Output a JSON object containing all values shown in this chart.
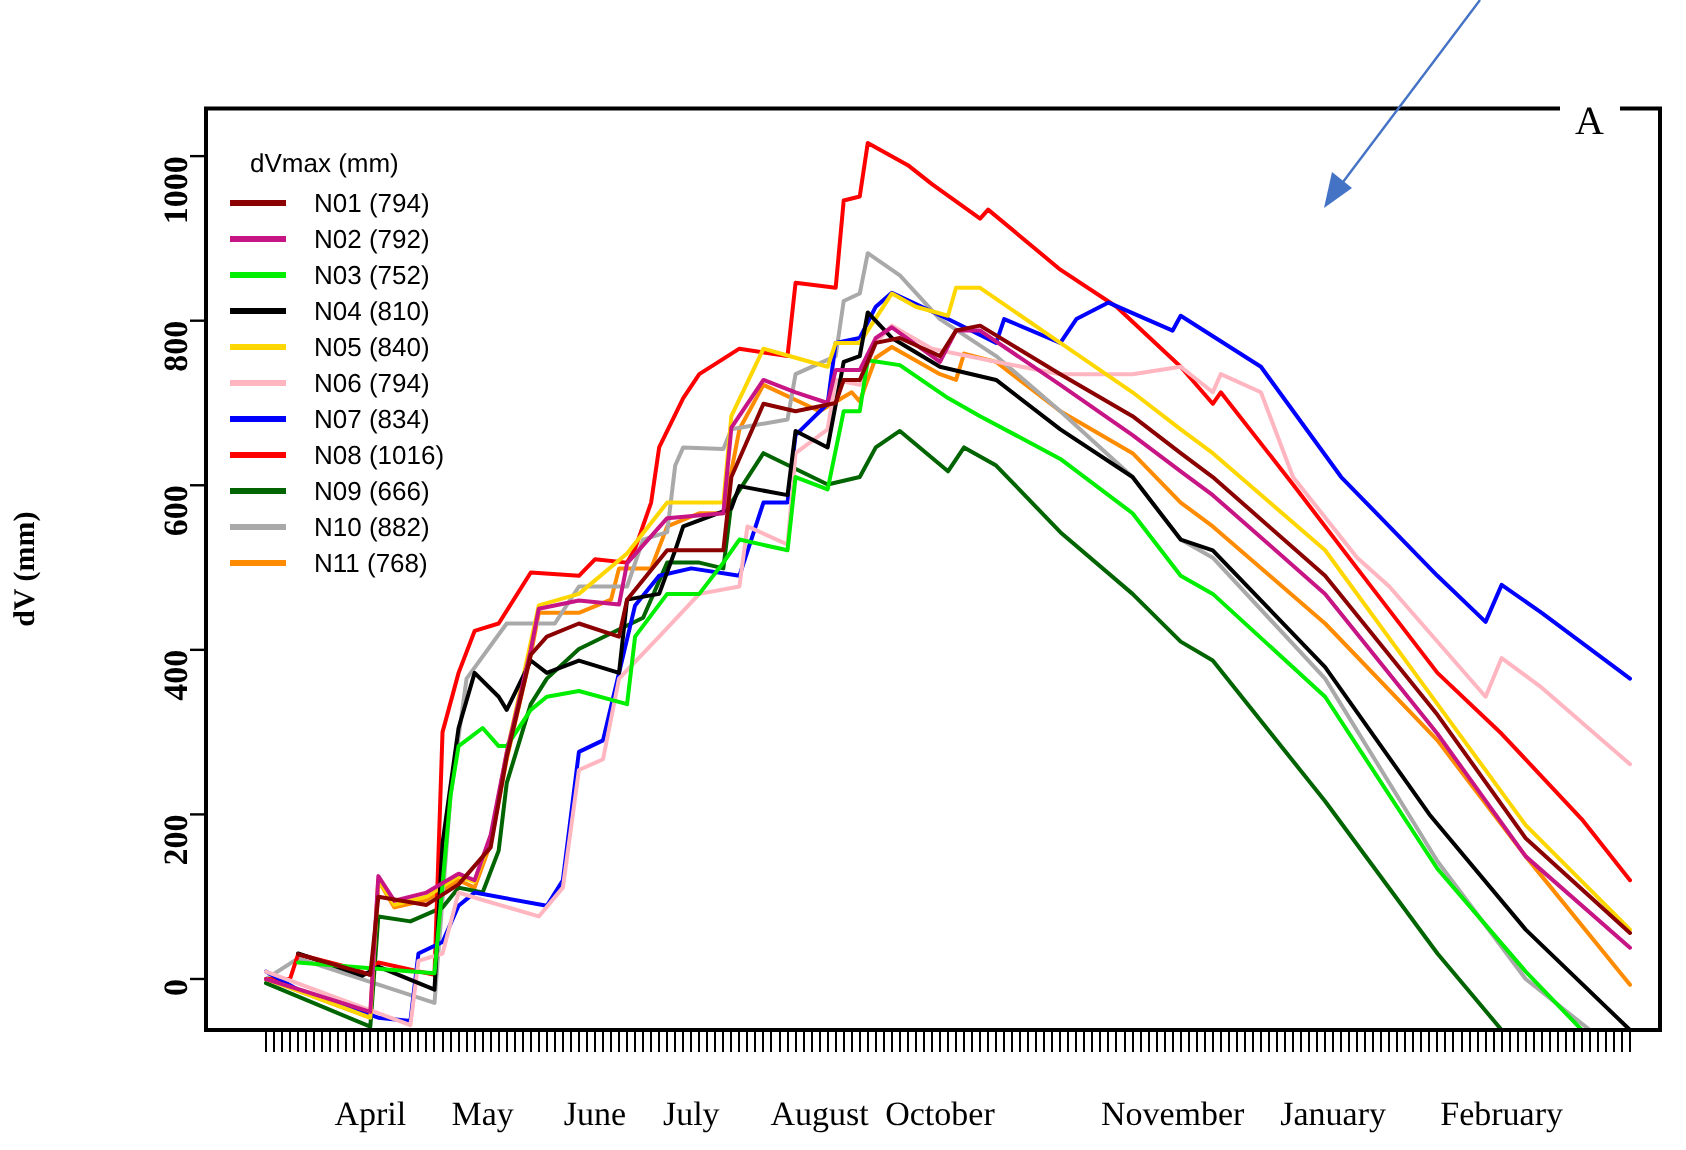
{
  "chart_data": {
    "type": "line",
    "ylabel": "dV (mm)",
    "legend_title": "dVmax (mm)",
    "legend": "top left",
    "grid": false,
    "marker": "none",
    "line_style": "solid",
    "categories": [
      null,
      null,
      null,
      null,
      null,
      null,
      null,
      null,
      null,
      null,
      null,
      null,
      null,
      "April",
      null,
      null,
      null,
      null,
      null,
      null,
      null,
      null,
      null,
      null,
      null,
      null,
      null,
      "May",
      null,
      null,
      null,
      null,
      null,
      null,
      null,
      null,
      null,
      null,
      null,
      null,
      null,
      "June",
      null,
      null,
      null,
      null,
      null,
      null,
      null,
      null,
      null,
      null,
      null,
      "July",
      null,
      null,
      null,
      null,
      null,
      null,
      null,
      null,
      null,
      null,
      null,
      null,
      null,
      null,
      null,
      "August",
      null,
      null,
      null,
      null,
      null,
      null,
      null,
      null,
      null,
      null,
      null,
      null,
      null,
      null,
      "October",
      null,
      null,
      null,
      null,
      null,
      null,
      null,
      null,
      null,
      null,
      null,
      null,
      null,
      null,
      null,
      null,
      null,
      null,
      null,
      null,
      null,
      null,
      null,
      null,
      null,
      null,
      null,
      null,
      "November",
      null,
      null,
      null,
      null,
      null,
      null,
      null,
      null,
      null,
      null,
      null,
      null,
      null,
      null,
      null,
      null,
      null,
      null,
      null,
      "January",
      null,
      null,
      null,
      null,
      null,
      null,
      null,
      null,
      null,
      null,
      null,
      null,
      null,
      null,
      null,
      null,
      null,
      null,
      null,
      null,
      "February",
      null,
      null,
      null,
      null,
      null,
      null,
      null,
      null,
      null,
      null,
      null,
      null,
      null,
      null,
      null,
      null
    ],
    "ylim": [
      -62,
      1058
    ],
    "yticks": [
      0,
      200,
      400,
      600,
      800,
      1000
    ],
    "annotations": [
      "A"
    ],
    "series": [
      {
        "name": "N01 (794)",
        "color": "#8b0000",
        "values": [
          null,
          null,
          null,
          null,
          30,
          null,
          null,
          null,
          null,
          null,
          null,
          null,
          null,
          5,
          100,
          null,
          null,
          null,
          null,
          null,
          90,
          null,
          null,
          null,
          115,
          null,
          null,
          null,
          160,
          null,
          270,
          null,
          null,
          394,
          null,
          416,
          null,
          null,
          null,
          432,
          null,
          null,
          null,
          null,
          416,
          461,
          null,
          null,
          null,
          null,
          521,
          null,
          null,
          null,
          null,
          null,
          null,
          521,
          610,
          null,
          null,
          null,
          699,
          null,
          null,
          null,
          690,
          null,
          null,
          null,
          null,
          700,
          728,
          null,
          728,
          null,
          773,
          null,
          null,
          779,
          null,
          null,
          null,
          null,
          757,
          null,
          788,
          null,
          null,
          794,
          null,
          null,
          null,
          null,
          null,
          null,
          null,
          null,
          null,
          735,
          null,
          null,
          null,
          null,
          null,
          null,
          null,
          null,
          684,
          null,
          null,
          null,
          null,
          null,
          639,
          null,
          null,
          null,
          610,
          null,
          null,
          null,
          null,
          null,
          null,
          null,
          null,
          null,
          null,
          null,
          null,
          null,
          490,
          null,
          null,
          null,
          null,
          null,
          null,
          null,
          null,
          null,
          null,
          null,
          null,
          null,
          321,
          null,
          null,
          null,
          null,
          null,
          null,
          null,
          null,
          null,
          null,
          171,
          null,
          null,
          null,
          null,
          null,
          null,
          null,
          null,
          null,
          null,
          null,
          null,
          56
        ]
      },
      {
        "name": "N02 (792)",
        "color": "#c71585",
        "values": [
          0,
          null,
          null,
          null,
          null,
          null,
          null,
          null,
          null,
          null,
          null,
          null,
          null,
          -40,
          125,
          null,
          95,
          null,
          null,
          null,
          105,
          null,
          null,
          null,
          128,
          null,
          120,
          null,
          175,
          null,
          275,
          null,
          null,
          400,
          450,
          null,
          null,
          null,
          null,
          460,
          null,
          null,
          null,
          null,
          455,
          505,
          null,
          null,
          null,
          null,
          560,
          null,
          null,
          null,
          null,
          null,
          null,
          566,
          670,
          null,
          null,
          null,
          728,
          null,
          null,
          null,
          713,
          null,
          null,
          null,
          700,
          740,
          null,
          null,
          740,
          null,
          779,
          null,
          792,
          null,
          null,
          null,
          null,
          null,
          750,
          null,
          788,
          null,
          null,
          788,
          null,
          null,
          null,
          null,
          null,
          null,
          null,
          null,
          null,
          722,
          null,
          null,
          null,
          null,
          null,
          null,
          null,
          null,
          661,
          null,
          null,
          null,
          null,
          null,
          617,
          null,
          null,
          null,
          588,
          null,
          null,
          null,
          null,
          null,
          null,
          null,
          null,
          null,
          null,
          null,
          null,
          null,
          468,
          null,
          null,
          null,
          null,
          null,
          null,
          null,
          null,
          null,
          null,
          null,
          null,
          null,
          298,
          null,
          null,
          null,
          null,
          null,
          null,
          null,
          null,
          null,
          null,
          149,
          null,
          null,
          null,
          null,
          null,
          null,
          null,
          null,
          null,
          null,
          null,
          null,
          38
        ]
      },
      {
        "name": "N03 (752)",
        "color": "#00ee00",
        "values": [
          null,
          null,
          null,
          null,
          20,
          null,
          null,
          null,
          null,
          null,
          null,
          null,
          null,
          null,
          null,
          null,
          null,
          null,
          null,
          null,
          null,
          7,
          null,
          223,
          283,
          null,
          null,
          305,
          null,
          283,
          283,
          null,
          null,
          327,
          null,
          343,
          null,
          null,
          null,
          350,
          null,
          null,
          null,
          null,
          null,
          334,
          416,
          null,
          null,
          null,
          468,
          null,
          null,
          null,
          468,
          null,
          null,
          506,
          null,
          534,
          null,
          null,
          null,
          null,
          null,
          521,
          610,
          null,
          null,
          null,
          595,
          null,
          690,
          null,
          690,
          752,
          null,
          null,
          null,
          746,
          null,
          null,
          null,
          null,
          null,
          706,
          null,
          null,
          null,
          684,
          null,
          null,
          null,
          null,
          null,
          null,
          null,
          null,
          null,
          632,
          null,
          null,
          null,
          null,
          null,
          null,
          null,
          null,
          566,
          null,
          null,
          null,
          null,
          null,
          490,
          null,
          null,
          null,
          468,
          null,
          null,
          null,
          null,
          null,
          null,
          null,
          null,
          null,
          null,
          null,
          null,
          null,
          343,
          null,
          null,
          null,
          null,
          null,
          null,
          null,
          null,
          null,
          null,
          null,
          null,
          null,
          134,
          null,
          null,
          null,
          null,
          null,
          null,
          null,
          null,
          null,
          null,
          9,
          null,
          null,
          null,
          null,
          null,
          null,
          -62,
          null,
          null,
          null,
          null,
          null,
          null
        ]
      },
      {
        "name": "N04 (810)",
        "color": "#000000",
        "values": [
          null,
          null,
          null,
          null,
          31,
          null,
          null,
          null,
          null,
          null,
          null,
          null,
          4,
          null,
          15,
          null,
          null,
          null,
          null,
          null,
          null,
          -13,
          165,
          null,
          305,
          null,
          372,
          null,
          null,
          343,
          327,
          null,
          null,
          387,
          null,
          372,
          null,
          null,
          null,
          387,
          null,
          null,
          null,
          null,
          372,
          461,
          null,
          null,
          null,
          468,
          null,
          521,
          550,
          null,
          null,
          null,
          null,
          null,
          572,
          599,
          null,
          null,
          null,
          null,
          null,
          588,
          666,
          null,
          null,
          null,
          646,
          null,
          750,
          null,
          757,
          810,
          null,
          null,
          779,
          null,
          null,
          null,
          null,
          null,
          744,
          null,
          null,
          null,
          null,
          null,
          null,
          728,
          null,
          null,
          null,
          null,
          null,
          null,
          null,
          668,
          null,
          null,
          null,
          null,
          null,
          null,
          null,
          null,
          610,
          null,
          null,
          null,
          null,
          null,
          534,
          null,
          null,
          null,
          521,
          null,
          null,
          null,
          null,
          null,
          null,
          null,
          null,
          null,
          null,
          null,
          null,
          null,
          379,
          null,
          null,
          null,
          null,
          null,
          null,
          null,
          null,
          null,
          null,
          null,
          null,
          200,
          null,
          null,
          null,
          null,
          null,
          null,
          null,
          null,
          null,
          null,
          null,
          60,
          null,
          null,
          null,
          null,
          null,
          null,
          null,
          null,
          null,
          null,
          null,
          null,
          -62
        ]
      },
      {
        "name": "N05 (840)",
        "color": "#ffd700",
        "values": [
          0,
          null,
          null,
          null,
          null,
          null,
          null,
          null,
          null,
          null,
          null,
          null,
          null,
          -47,
          120,
          null,
          90,
          null,
          null,
          null,
          100,
          null,
          null,
          null,
          125,
          null,
          118,
          null,
          170,
          null,
          275,
          null,
          null,
          null,
          454,
          null,
          null,
          null,
          null,
          468,
          null,
          null,
          null,
          null,
          null,
          517,
          null,
          null,
          null,
          null,
          579,
          null,
          null,
          null,
          null,
          null,
          null,
          579,
          684,
          null,
          null,
          null,
          766,
          null,
          null,
          null,
          755,
          null,
          null,
          null,
          744,
          773,
          null,
          null,
          773,
          null,
          null,
          null,
          833,
          null,
          null,
          817,
          null,
          null,
          null,
          806,
          840,
          null,
          null,
          840,
          null,
          null,
          null,
          null,
          null,
          null,
          null,
          null,
          null,
          773,
          null,
          null,
          null,
          null,
          null,
          null,
          null,
          null,
          713,
          null,
          null,
          null,
          null,
          null,
          668,
          null,
          null,
          null,
          639,
          null,
          null,
          null,
          null,
          null,
          null,
          null,
          null,
          null,
          null,
          null,
          null,
          null,
          521,
          null,
          null,
          null,
          null,
          null,
          null,
          null,
          null,
          null,
          null,
          null,
          null,
          null,
          334,
          null,
          null,
          null,
          null,
          null,
          null,
          null,
          null,
          null,
          null,
          187,
          null,
          null,
          null,
          null,
          null,
          null,
          null,
          null,
          null,
          null,
          null,
          null,
          60
        ]
      },
      {
        "name": "N06 (794)",
        "color": "#ffb6c1",
        "values": [
          9,
          null,
          null,
          null,
          null,
          null,
          null,
          null,
          null,
          null,
          null,
          null,
          null,
          null,
          null,
          null,
          null,
          null,
          -56,
          22,
          null,
          null,
          31,
          null,
          105,
          null,
          null,
          96,
          null,
          null,
          null,
          null,
          null,
          null,
          76,
          null,
          null,
          111,
          null,
          254,
          null,
          null,
          267,
          null,
          365,
          null,
          null,
          null,
          null,
          416,
          null,
          null,
          null,
          null,
          468,
          null,
          null,
          null,
          null,
          477,
          550,
          null,
          null,
          null,
          null,
          528,
          639,
          null,
          null,
          null,
          668,
          728,
          null,
          null,
          722,
          null,
          773,
          null,
          794,
          null,
          null,
          null,
          null,
          766,
          null,
          null,
          null,
          null,
          null,
          null,
          null,
          750,
          null,
          null,
          null,
          null,
          null,
          null,
          null,
          735,
          null,
          null,
          null,
          null,
          null,
          null,
          null,
          null,
          735,
          null,
          null,
          null,
          null,
          null,
          744,
          null,
          null,
          null,
          713,
          735,
          null,
          null,
          null,
          null,
          713,
          null,
          null,
          null,
          610,
          null,
          null,
          null,
          null,
          null,
          null,
          null,
          512,
          null,
          null,
          null,
          477,
          null,
          null,
          null,
          null,
          null,
          null,
          null,
          null,
          null,
          null,
          null,
          343,
          null,
          390,
          null,
          null,
          null,
          null,
          354,
          null,
          null,
          null,
          null,
          null,
          null,
          null,
          null,
          null,
          null,
          261
        ]
      },
      {
        "name": "N07 (834)",
        "color": "#0000ff",
        "values": [
          9,
          null,
          null,
          null,
          -13,
          null,
          null,
          null,
          null,
          null,
          null,
          null,
          null,
          null,
          -47,
          null,
          null,
          null,
          -51,
          31,
          null,
          null,
          45,
          null,
          89,
          null,
          105,
          null,
          null,
          null,
          null,
          null,
          null,
          null,
          null,
          89,
          null,
          120,
          null,
          276,
          null,
          null,
          290,
          null,
          372,
          null,
          454,
          null,
          null,
          490,
          null,
          null,
          null,
          499,
          null,
          null,
          null,
          null,
          null,
          490,
          null,
          null,
          579,
          null,
          null,
          579,
          661,
          null,
          null,
          null,
          699,
          773,
          null,
          null,
          779,
          null,
          817,
          null,
          834,
          null,
          null,
          null,
          null,
          null,
          null,
          802,
          null,
          null,
          null,
          null,
          null,
          773,
          802,
          null,
          null,
          null,
          null,
          null,
          null,
          773,
          null,
          802,
          null,
          null,
          null,
          822,
          null,
          null,
          null,
          null,
          null,
          null,
          null,
          788,
          806,
          null,
          null,
          null,
          null,
          null,
          null,
          null,
          null,
          null,
          744,
          null,
          null,
          null,
          null,
          null,
          null,
          null,
          null,
          null,
          610,
          null,
          null,
          null,
          null,
          null,
          null,
          null,
          null,
          null,
          null,
          null,
          490,
          null,
          null,
          null,
          null,
          null,
          434,
          null,
          479,
          null,
          null,
          null,
          null,
          445,
          null,
          null,
          null,
          null,
          null,
          null,
          null,
          null,
          null,
          null,
          365
        ]
      },
      {
        "name": "N08 (1016)",
        "color": "#ff0000",
        "values": [
          0,
          null,
          null,
          0,
          30,
          null,
          null,
          null,
          null,
          null,
          15,
          null,
          null,
          5,
          20,
          null,
          null,
          null,
          null,
          null,
          null,
          5,
          300,
          null,
          372,
          null,
          423,
          null,
          null,
          432,
          null,
          null,
          null,
          494,
          null,
          null,
          null,
          null,
          null,
          490,
          null,
          510,
          null,
          null,
          null,
          506,
          523,
          null,
          579,
          646,
          null,
          null,
          706,
          null,
          735,
          null,
          null,
          null,
          null,
          766,
          null,
          null,
          null,
          null,
          null,
          757,
          846,
          null,
          null,
          null,
          null,
          840,
          946,
          null,
          951,
          1016,
          null,
          null,
          null,
          null,
          989,
          null,
          null,
          966,
          null,
          null,
          null,
          null,
          null,
          924,
          935,
          null,
          null,
          null,
          null,
          null,
          null,
          null,
          null,
          862,
          null,
          null,
          null,
          null,
          null,
          null,
          817,
          null,
          null,
          null,
          null,
          null,
          null,
          null,
          744,
          null,
          null,
          null,
          699,
          713,
          null,
          null,
          null,
          null,
          null,
          null,
          null,
          null,
          601,
          null,
          null,
          null,
          null,
          null,
          null,
          null,
          499,
          null,
          null,
          null,
          null,
          null,
          null,
          null,
          null,
          null,
          372,
          null,
          null,
          null,
          null,
          null,
          null,
          null,
          298,
          null,
          null,
          null,
          null,
          null,
          null,
          null,
          null,
          null,
          194,
          null,
          null,
          null,
          null,
          null,
          120
        ]
      },
      {
        "name": "N09 (666)",
        "color": "#006400",
        "values": [
          -5,
          null,
          null,
          null,
          null,
          null,
          null,
          null,
          null,
          null,
          null,
          null,
          null,
          -58,
          76,
          null,
          null,
          null,
          70,
          null,
          null,
          null,
          87,
          null,
          111,
          null,
          null,
          105,
          null,
          156,
          238,
          null,
          null,
          334,
          null,
          365,
          null,
          null,
          null,
          401,
          null,
          null,
          null,
          null,
          null,
          null,
          null,
          439,
          null,
          null,
          506,
          null,
          null,
          null,
          506,
          null,
          null,
          499,
          579,
          null,
          null,
          null,
          639,
          null,
          null,
          null,
          null,
          null,
          null,
          null,
          601,
          null,
          null,
          null,
          610,
          null,
          646,
          null,
          null,
          666,
          null,
          null,
          null,
          null,
          null,
          617,
          null,
          646,
          null,
          null,
          null,
          624,
          null,
          null,
          null,
          null,
          null,
          null,
          null,
          543,
          null,
          null,
          null,
          null,
          null,
          null,
          null,
          null,
          468,
          null,
          null,
          null,
          null,
          null,
          410,
          null,
          null,
          null,
          387,
          null,
          null,
          null,
          null,
          null,
          null,
          null,
          null,
          null,
          null,
          null,
          null,
          null,
          216,
          null,
          null,
          null,
          null,
          null,
          null,
          null,
          null,
          null,
          null,
          null,
          null,
          null,
          31,
          null,
          null,
          null,
          null,
          null,
          null,
          null,
          -62,
          null,
          null,
          null,
          null,
          null,
          null,
          null,
          null,
          null,
          null,
          null,
          null,
          null,
          null,
          null,
          null
        ]
      },
      {
        "name": "N10 (882)",
        "color": "#a9a9a9",
        "values": [
          0,
          null,
          null,
          null,
          25,
          null,
          null,
          null,
          null,
          null,
          null,
          null,
          null,
          null,
          null,
          null,
          null,
          null,
          null,
          null,
          null,
          -29,
          null,
          223,
          null,
          365,
          null,
          null,
          null,
          null,
          432,
          null,
          null,
          null,
          null,
          null,
          432,
          null,
          null,
          477,
          null,
          null,
          null,
          null,
          null,
          477,
          null,
          534,
          null,
          null,
          543,
          624,
          646,
          null,
          null,
          null,
          null,
          644,
          668,
          null,
          null,
          null,
          null,
          null,
          null,
          680,
          735,
          null,
          null,
          null,
          null,
          757,
          824,
          null,
          833,
          882,
          null,
          null,
          null,
          855,
          null,
          null,
          null,
          null,
          802,
          null,
          null,
          null,
          null,
          null,
          null,
          757,
          null,
          null,
          null,
          null,
          null,
          null,
          null,
          690,
          null,
          null,
          null,
          null,
          null,
          null,
          null,
          null,
          610,
          null,
          null,
          null,
          null,
          null,
          534,
          null,
          null,
          null,
          512,
          null,
          null,
          null,
          null,
          null,
          null,
          null,
          null,
          null,
          null,
          null,
          null,
          null,
          365,
          null,
          null,
          null,
          null,
          null,
          null,
          null,
          null,
          null,
          null,
          null,
          null,
          null,
          143,
          null,
          null,
          null,
          null,
          null,
          null,
          null,
          null,
          null,
          null,
          0,
          null,
          null,
          null,
          null,
          null,
          null,
          null,
          -62,
          null,
          null,
          null,
          null,
          null
        ]
      },
      {
        "name": "N11 (768)",
        "color": "#ff8c00",
        "values": [
          0,
          null,
          null,
          null,
          null,
          null,
          null,
          null,
          null,
          null,
          null,
          null,
          null,
          -47,
          120,
          null,
          87,
          null,
          null,
          null,
          96,
          null,
          null,
          null,
          120,
          null,
          111,
          null,
          165,
          null,
          267,
          null,
          null,
          394,
          445,
          null,
          null,
          null,
          null,
          445,
          null,
          null,
          null,
          461,
          499,
          null,
          null,
          null,
          499,
          null,
          550,
          null,
          null,
          null,
          566,
          null,
          null,
          566,
          null,
          668,
          null,
          null,
          722,
          null,
          null,
          null,
          null,
          null,
          null,
          690,
          null,
          null,
          null,
          713,
          702,
          null,
          755,
          null,
          768,
          null,
          null,
          null,
          null,
          null,
          735,
          null,
          728,
          760,
          null,
          null,
          null,
          750,
          null,
          null,
          null,
          null,
          null,
          null,
          null,
          690,
          null,
          null,
          null,
          null,
          null,
          null,
          null,
          null,
          639,
          null,
          null,
          null,
          null,
          null,
          579,
          null,
          null,
          null,
          550,
          null,
          null,
          null,
          null,
          null,
          null,
          null,
          null,
          null,
          null,
          null,
          null,
          null,
          432,
          null,
          null,
          null,
          null,
          null,
          null,
          null,
          null,
          null,
          null,
          null,
          null,
          null,
          290,
          null,
          null,
          null,
          null,
          null,
          null,
          null,
          null,
          null,
          null,
          149,
          null,
          null,
          null,
          null,
          null,
          null,
          null,
          null,
          null,
          null,
          null,
          null,
          -7
        ]
      }
    ]
  }
}
